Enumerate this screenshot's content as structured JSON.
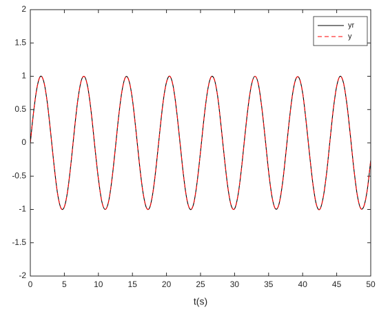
{
  "chart_data": {
    "type": "line",
    "x_label": "t(s)",
    "x": [
      0,
      0.5,
      1,
      1.5,
      2,
      2.5,
      3,
      3.5,
      4,
      4.5,
      5,
      5.5,
      6,
      6.5,
      7,
      7.5,
      8,
      8.5,
      9,
      9.5,
      10,
      10.5,
      11,
      11.5,
      12,
      12.5,
      13,
      13.5,
      14,
      14.5,
      15,
      15.5,
      16,
      16.5,
      17,
      17.5,
      18,
      18.5,
      19,
      19.5,
      20,
      20.5,
      21,
      21.5,
      22,
      22.5,
      23,
      23.5,
      24,
      24.5,
      25,
      25.5,
      26,
      26.5,
      27,
      27.5,
      28,
      28.5,
      29,
      29.5,
      30,
      30.5,
      31,
      31.5,
      32,
      32.5,
      33,
      33.5,
      34,
      34.5,
      35,
      35.5,
      36,
      36.5,
      37,
      37.5,
      38,
      38.5,
      39,
      39.5,
      40,
      40.5,
      41,
      41.5,
      42,
      42.5,
      43,
      43.5,
      44,
      44.5,
      45,
      45.5,
      46,
      46.5,
      47,
      47.5,
      48,
      48.5,
      49,
      49.5,
      50
    ],
    "series": [
      {
        "name": "yr",
        "color": "#000000",
        "dash": "solid",
        "values": [
          0,
          0.48,
          0.84,
          1.0,
          0.91,
          0.6,
          0.14,
          -0.35,
          -0.76,
          -0.98,
          -0.96,
          -0.71,
          -0.28,
          0.22,
          0.66,
          0.94,
          0.99,
          0.8,
          0.41,
          -0.08,
          -0.54,
          -0.88,
          -1.0,
          -0.88,
          -0.54,
          -0.07,
          0.42,
          0.8,
          0.99,
          0.93,
          0.65,
          0.2,
          -0.29,
          -0.71,
          -0.96,
          -0.98,
          -0.75,
          -0.34,
          0.15,
          0.61,
          0.91,
          1.0,
          0.84,
          0.47,
          -0.01,
          -0.49,
          -0.85,
          -1.0,
          -0.91,
          -0.59,
          -0.13,
          0.36,
          0.76,
          0.98,
          0.96,
          0.71,
          0.27,
          -0.22,
          -0.66,
          -0.94,
          -0.99,
          -0.79,
          -0.4,
          0.09,
          0.55,
          0.88,
          1.0,
          0.88,
          0.53,
          0.06,
          -0.43,
          -0.81,
          -0.99,
          -0.93,
          -0.64,
          -0.19,
          0.3,
          0.72,
          0.96,
          0.97,
          0.75,
          0.33,
          -0.16,
          -0.61,
          -0.92,
          -1.0,
          -0.83,
          -0.47,
          0.02,
          0.5,
          0.85,
          1.0,
          0.9,
          0.58,
          0.12,
          -0.37,
          -0.77,
          -0.98,
          -0.95,
          -0.7,
          -0.26
        ]
      },
      {
        "name": "y",
        "color": "#ff0000",
        "dash": "dashed",
        "values": [
          0,
          0.48,
          0.84,
          1.0,
          0.91,
          0.6,
          0.14,
          -0.35,
          -0.76,
          -0.98,
          -0.96,
          -0.71,
          -0.28,
          0.22,
          0.66,
          0.94,
          0.99,
          0.8,
          0.41,
          -0.08,
          -0.54,
          -0.88,
          -1.0,
          -0.88,
          -0.54,
          -0.07,
          0.42,
          0.8,
          0.99,
          0.93,
          0.65,
          0.2,
          -0.29,
          -0.71,
          -0.96,
          -0.98,
          -0.75,
          -0.34,
          0.15,
          0.61,
          0.91,
          1.0,
          0.84,
          0.47,
          -0.01,
          -0.49,
          -0.85,
          -1.0,
          -0.91,
          -0.59,
          -0.13,
          0.36,
          0.76,
          0.98,
          0.96,
          0.71,
          0.27,
          -0.22,
          -0.66,
          -0.94,
          -0.99,
          -0.79,
          -0.4,
          0.09,
          0.55,
          0.88,
          1.0,
          0.88,
          0.53,
          0.06,
          -0.43,
          -0.81,
          -0.99,
          -0.93,
          -0.64,
          -0.19,
          0.3,
          0.72,
          0.96,
          0.97,
          0.75,
          0.33,
          -0.16,
          -0.61,
          -0.92,
          -1.0,
          -0.83,
          -0.47,
          0.02,
          0.5,
          0.85,
          1.0,
          0.9,
          0.58,
          0.12,
          -0.37,
          -0.77,
          -0.98,
          -0.95,
          -0.7,
          -0.26
        ]
      }
    ],
    "xlim": [
      0,
      50
    ],
    "xticks": [
      0,
      5,
      10,
      15,
      20,
      25,
      30,
      35,
      40,
      45,
      50
    ],
    "ylim": [
      -2,
      2
    ],
    "yticks": [
      -2,
      -1.5,
      -1,
      -0.5,
      0,
      0.5,
      1,
      1.5,
      2
    ],
    "grid": false,
    "legend": "top-right"
  }
}
